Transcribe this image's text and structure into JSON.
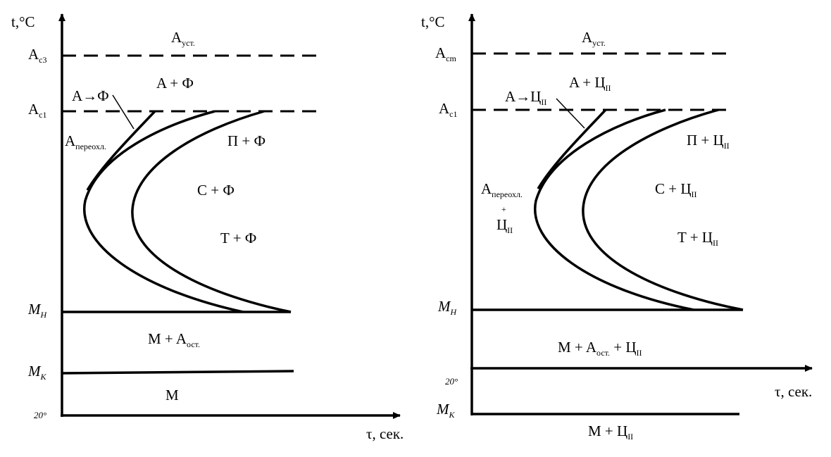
{
  "left": {
    "y_axis": "t,°C",
    "x_axis": "τ, сек.",
    "labels": [
      [
        "A",
        "уст."
      ],
      [
        "A",
        "c3"
      ],
      [
        "A + Ф"
      ],
      [
        "A→Ф"
      ],
      [
        "A",
        "c1"
      ],
      [
        "A",
        "переохл."
      ],
      [
        "П + Ф"
      ],
      [
        "C + Ф"
      ],
      [
        "T + Ф"
      ],
      [
        "M",
        "H"
      ],
      [
        "M + A",
        "ост."
      ],
      [
        "M",
        "K"
      ],
      [
        "M"
      ],
      [
        "20°"
      ]
    ]
  },
  "right": {
    "y_axis": "t,°C",
    "x_axis": "τ, сек.",
    "labels": [
      [
        "A",
        "уст."
      ],
      [
        "A",
        "cm"
      ],
      [
        "A + Ц",
        "II"
      ],
      [
        "A→Ц",
        "II"
      ],
      [
        "A",
        "c1"
      ],
      [
        "A",
        "переохл."
      ],
      [
        "+"
      ],
      [
        "Ц",
        "II"
      ],
      [
        "П + Ц",
        "II"
      ],
      [
        "C + Ц",
        "II"
      ],
      [
        "T + Ц",
        "II"
      ],
      [
        "M",
        "H"
      ],
      [
        "M + A",
        "ост.",
        " + Ц",
        "II"
      ],
      [
        "20°"
      ],
      [
        "M",
        "K"
      ],
      [
        "M + Ц",
        "II"
      ]
    ]
  }
}
